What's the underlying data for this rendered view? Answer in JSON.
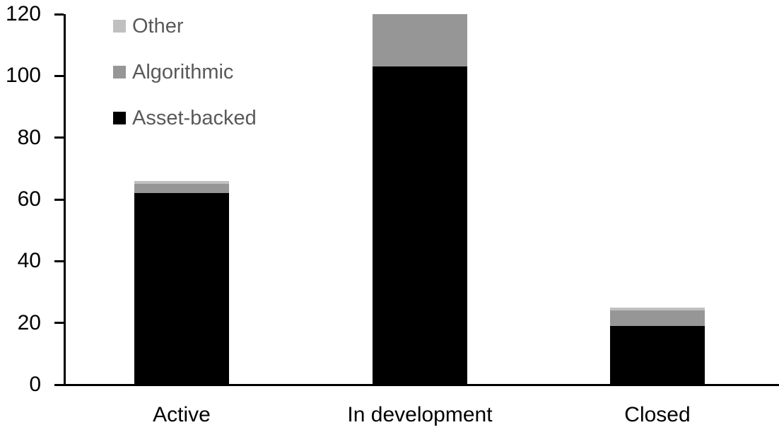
{
  "chart_data": {
    "type": "bar",
    "stacked": true,
    "title": "",
    "xlabel": "",
    "ylabel": "",
    "categories": [
      "Active",
      "In development",
      "Closed"
    ],
    "series": [
      {
        "name": "Asset-backed",
        "color": "#000000",
        "values": [
          62,
          103,
          19
        ]
      },
      {
        "name": "Algorithmic",
        "color": "#969696",
        "values": [
          3,
          17,
          5
        ]
      },
      {
        "name": "Other",
        "color": "#c0c0c0",
        "values": [
          1,
          0,
          1
        ]
      }
    ],
    "totals": [
      66,
      120,
      25
    ],
    "yticks": [
      0,
      20,
      40,
      60,
      80,
      100,
      120
    ],
    "ylim": [
      0,
      120
    ],
    "grid": false,
    "legend_position": "top-left",
    "legend_order": [
      "Other",
      "Algorithmic",
      "Asset-backed"
    ]
  },
  "legend": {
    "items": [
      {
        "label": "Other",
        "color": "#c0c0c0"
      },
      {
        "label": "Algorithmic",
        "color": "#969696"
      },
      {
        "label": "Asset-backed",
        "color": "#000000"
      }
    ]
  },
  "colors": {
    "background": "#ffffff",
    "axis": "#000000",
    "tick_label": "#000000",
    "legend_text": "#595959"
  }
}
